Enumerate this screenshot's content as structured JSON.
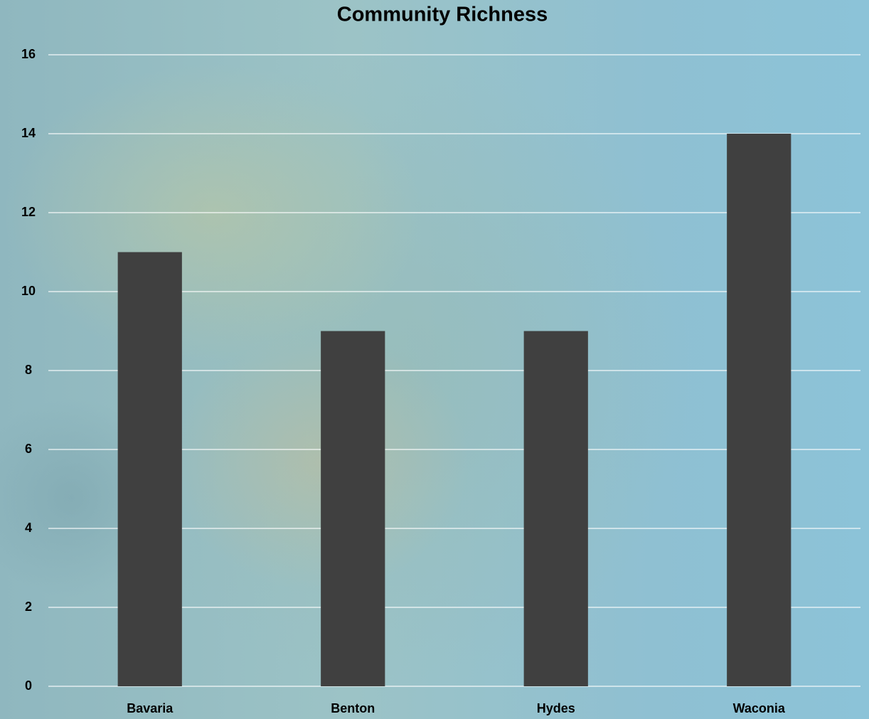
{
  "chart_data": {
    "type": "bar",
    "title": "Community Richness",
    "categories": [
      "Bavaria",
      "Benton",
      "Hydes",
      "Waconia"
    ],
    "values": [
      11,
      9,
      9,
      14
    ],
    "color": "#404040",
    "ylim": [
      0,
      16
    ],
    "yticks": [
      0,
      2,
      4,
      6,
      8,
      10,
      12,
      14,
      16
    ],
    "grid": true
  }
}
